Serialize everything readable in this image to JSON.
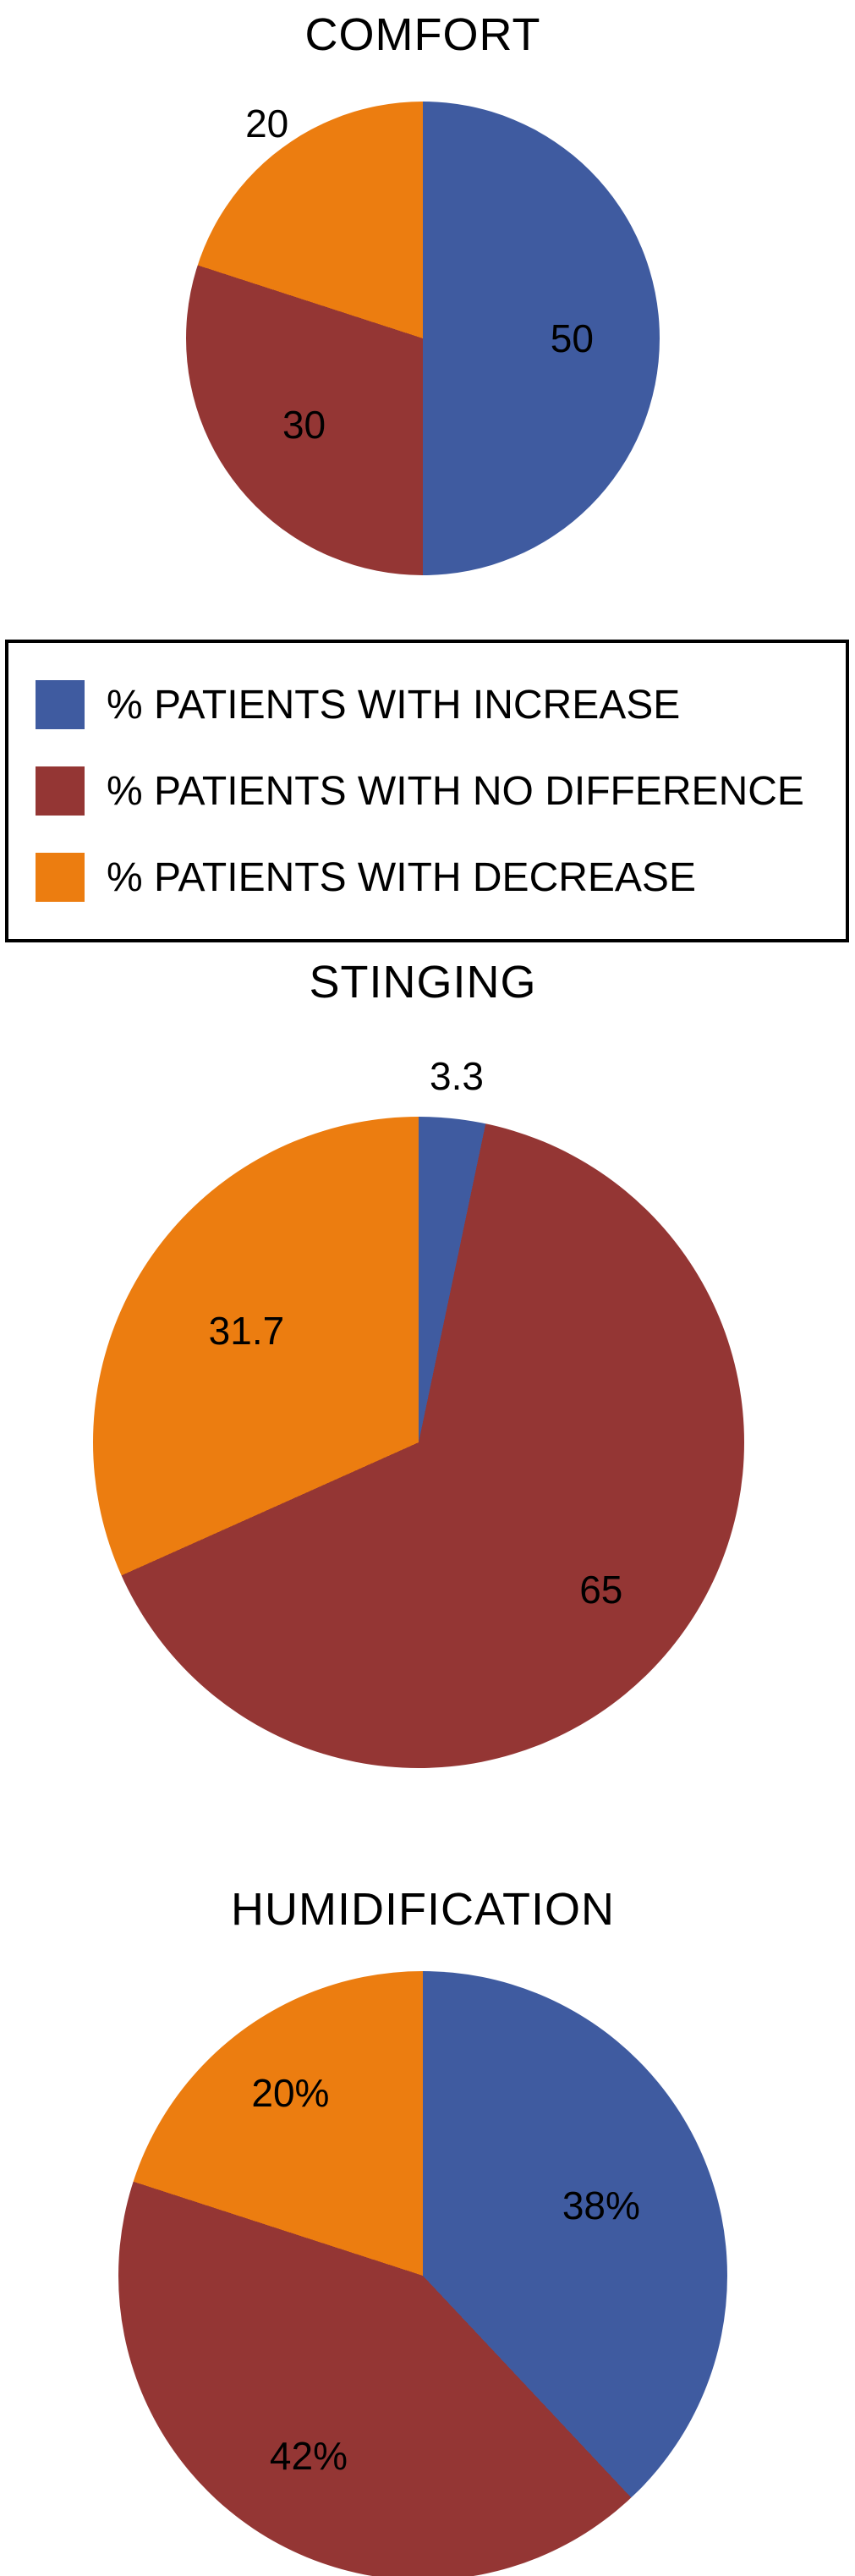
{
  "colors": {
    "increase": "#3f5ba0",
    "no_difference": "#943634",
    "decrease": "#ec7d10"
  },
  "legend": {
    "position": "between COMFORT and STINGING charts",
    "border": true,
    "items": [
      {
        "label": "% PATIENTS WITH INCREASE",
        "color_key": "increase"
      },
      {
        "label": "% PATIENTS WITH NO DIFFERENCE",
        "color_key": "no_difference"
      },
      {
        "label": "% PATIENTS WITH DECREASE",
        "color_key": "decrease"
      }
    ]
  },
  "chart_data": [
    {
      "type": "pie",
      "title": "COMFORT",
      "start_angle": "top",
      "direction": "clockwise",
      "values_are_percent": true,
      "slices": [
        {
          "name": "% PATIENTS WITH INCREASE",
          "value": 50,
          "label": "50",
          "color_key": "increase",
          "label_r": 0.63
        },
        {
          "name": "% PATIENTS WITH NO DIFFERENCE",
          "value": 30,
          "label": "30",
          "color_key": "no_difference",
          "label_r": 0.62
        },
        {
          "name": "% PATIENTS WITH DECREASE",
          "value": 20,
          "label": "20",
          "color_key": "decrease",
          "label_r": 1.12
        }
      ]
    },
    {
      "type": "pie",
      "title": "STINGING",
      "start_angle": "top",
      "direction": "clockwise",
      "values_are_percent": true,
      "slices": [
        {
          "name": "% PATIENTS WITH INCREASE",
          "value": 3.3,
          "label": "3.3",
          "color_key": "increase",
          "label_r": 1.13
        },
        {
          "name": "% PATIENTS WITH NO DIFFERENCE",
          "value": 65,
          "label": "65",
          "color_key": "no_difference",
          "label_r": 0.72
        },
        {
          "name": "% PATIENTS WITH DECREASE",
          "value": 31.7,
          "label": "31.7",
          "color_key": "decrease",
          "label_r": 0.63
        }
      ]
    },
    {
      "type": "pie",
      "title": "HUMIDIFICATION",
      "start_angle": "top",
      "direction": "clockwise",
      "values_are_percent": true,
      "slices": [
        {
          "name": "% PATIENTS WITH INCREASE",
          "value": 38,
          "label": "38%",
          "color_key": "increase",
          "label_r": 0.63
        },
        {
          "name": "% PATIENTS WITH NO DIFFERENCE",
          "value": 42,
          "label": "42%",
          "color_key": "no_difference",
          "label_r": 0.7
        },
        {
          "name": "% PATIENTS WITH DECREASE",
          "value": 20,
          "label": "20%",
          "color_key": "decrease",
          "label_r": 0.74
        }
      ]
    }
  ]
}
